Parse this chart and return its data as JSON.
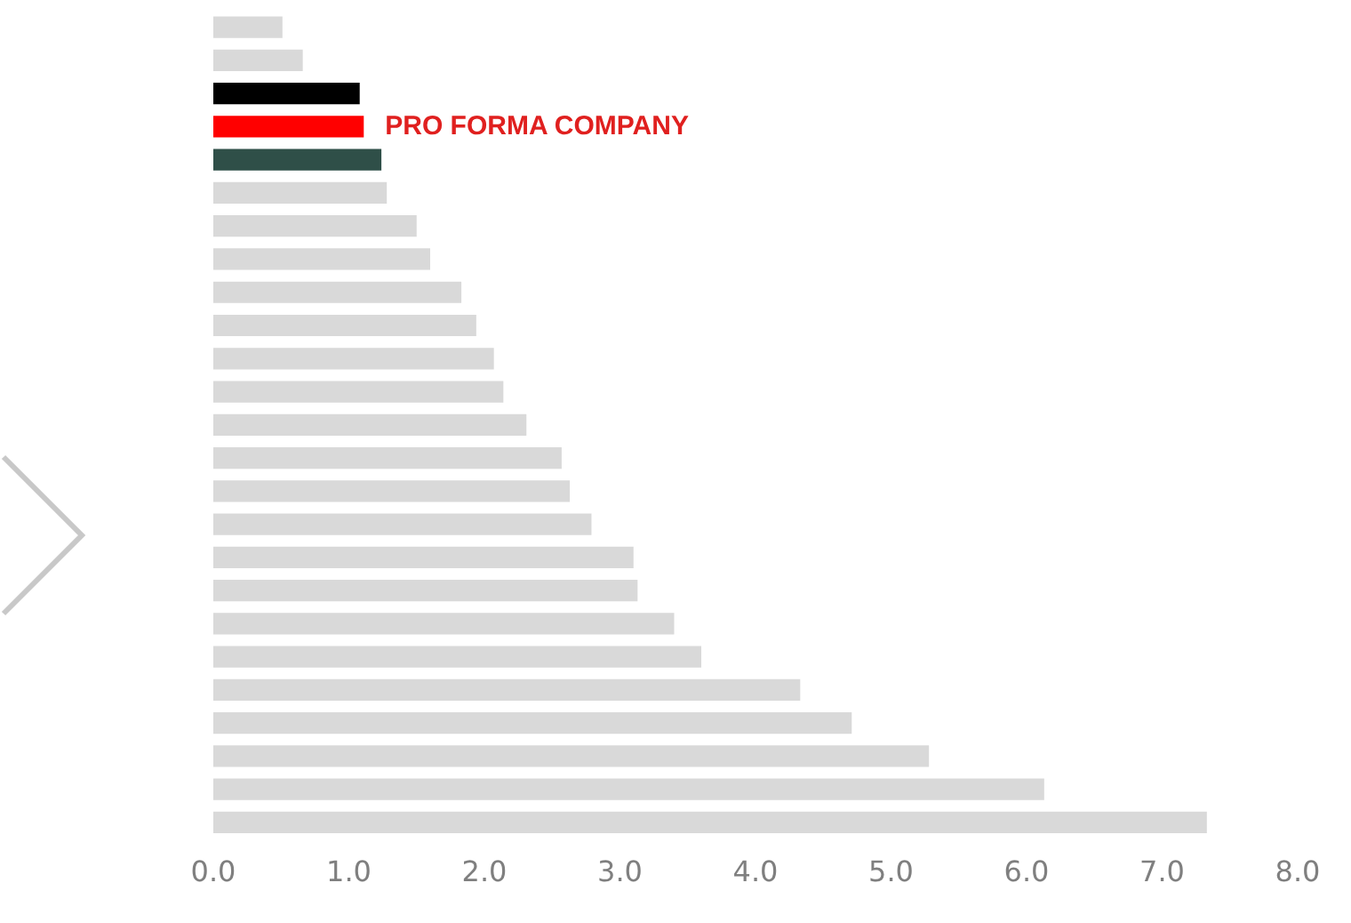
{
  "chart_data": {
    "type": "bar",
    "orientation": "horizontal",
    "categories": [
      null,
      null,
      null,
      null,
      null,
      null,
      null,
      null,
      null,
      null,
      null,
      null,
      null,
      null,
      null,
      null,
      null,
      null,
      null,
      null,
      null,
      null,
      null,
      null,
      null
    ],
    "values": [
      0.51,
      0.66,
      1.08,
      1.11,
      1.24,
      1.28,
      1.5,
      1.6,
      1.83,
      1.94,
      2.07,
      2.14,
      2.31,
      2.57,
      2.63,
      2.79,
      3.1,
      3.13,
      3.4,
      3.6,
      4.33,
      4.71,
      5.28,
      6.13,
      7.33
    ],
    "colors": [
      "#d9d9d9",
      "#d9d9d9",
      "#000000",
      "#ff0000",
      "#2f4f48",
      "#d9d9d9",
      "#d9d9d9",
      "#d9d9d9",
      "#d9d9d9",
      "#d9d9d9",
      "#d9d9d9",
      "#d9d9d9",
      "#d9d9d9",
      "#d9d9d9",
      "#d9d9d9",
      "#d9d9d9",
      "#d9d9d9",
      "#d9d9d9",
      "#d9d9d9",
      "#d9d9d9",
      "#d9d9d9",
      "#d9d9d9",
      "#d9d9d9",
      "#d9d9d9",
      "#d9d9d9"
    ],
    "xlim": [
      0,
      8
    ],
    "xticks": [
      {
        "value": 0,
        "label": "0.0"
      },
      {
        "value": 1,
        "label": "1.0"
      },
      {
        "value": 2,
        "label": "2.0"
      },
      {
        "value": 3,
        "label": "3.0"
      },
      {
        "value": 4,
        "label": "4.0"
      },
      {
        "value": 5,
        "label": "5.0"
      },
      {
        "value": 6,
        "label": "6.0"
      },
      {
        "value": 7,
        "label": "7.0"
      },
      {
        "value": 8,
        "label": "8.0"
      }
    ],
    "tick_labels": "x",
    "grid": false,
    "legend": false,
    "annotations": [
      {
        "text": "PRO FORMA COMPANY",
        "x": 1.11
      }
    ]
  }
}
